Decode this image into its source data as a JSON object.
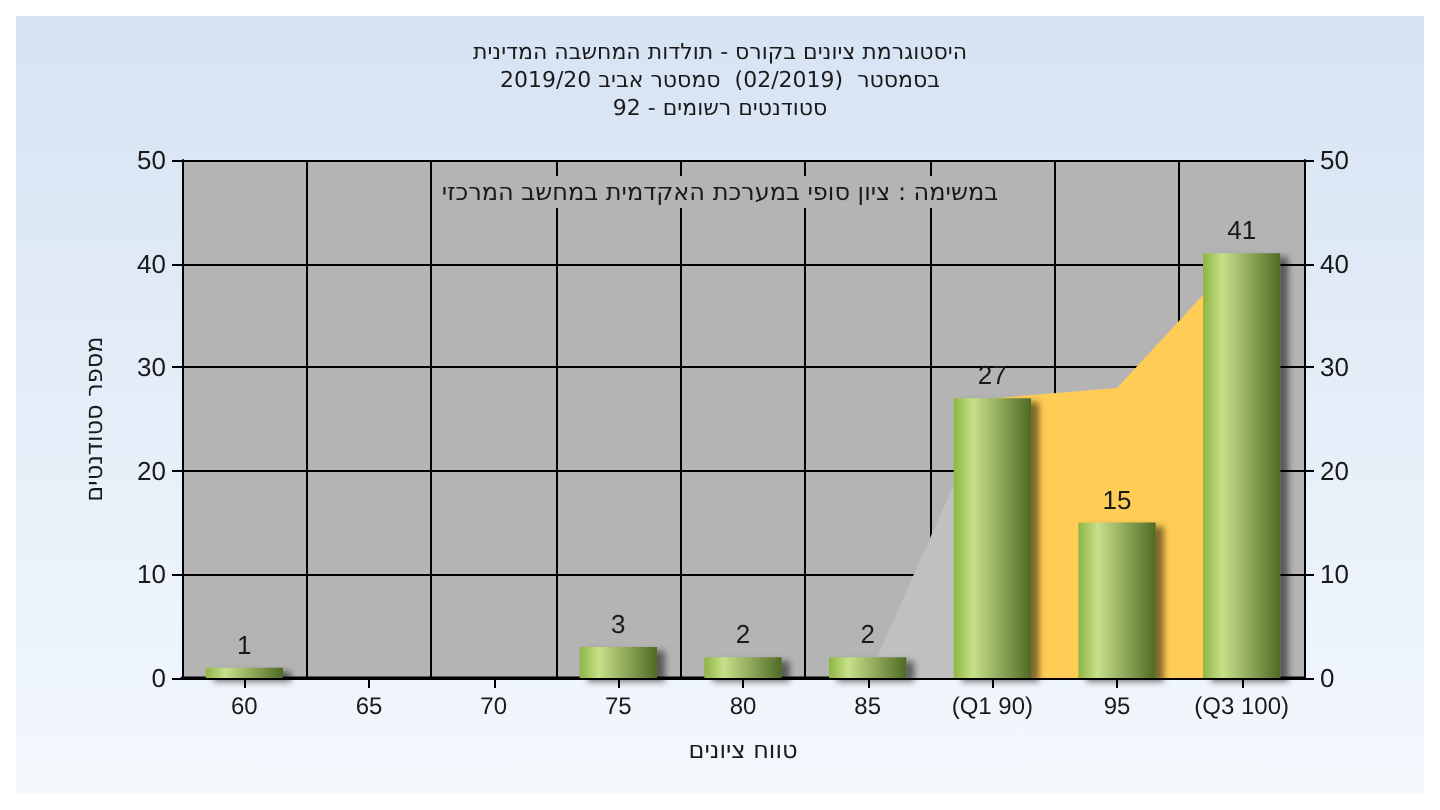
{
  "chart_data": {
    "type": "bar",
    "title": "היסטוגרמת ציונים בקורס - תולדות המחשבה המדינית\nבסמסטר  (02/2019)  סמסטר אביב 2019/20\nסטודנטים רשומים - 92",
    "xlabel": "טווח ציונים",
    "ylabel": "מספר סטודנטים",
    "annotations": [
      "במשימה : ציון סופי במערכת האקדמית במחשב המרכזי"
    ],
    "categories": [
      "60",
      "65",
      "70",
      "75",
      "80",
      "85",
      "(Q1 90)",
      "95",
      "(Q3 100)"
    ],
    "series": [
      {
        "type": "area",
        "color": "#c0c0c0",
        "values": [
          null,
          null,
          null,
          null,
          null,
          0,
          27,
          null,
          null
        ]
      },
      {
        "type": "area",
        "color": "#ffcc55",
        "values": [
          null,
          null,
          null,
          null,
          null,
          null,
          27,
          28,
          41
        ]
      },
      {
        "color": "#8db543",
        "values": [
          1,
          0,
          0,
          3,
          2,
          2,
          27,
          15,
          41
        ],
        "value_labels": [
          "1",
          null,
          null,
          "3",
          "2",
          "2",
          "27",
          "15",
          "41"
        ]
      }
    ],
    "ylim": [
      0,
      50
    ],
    "yticks": [
      0,
      10,
      20,
      30,
      40,
      50
    ],
    "y2lim": [
      0,
      50
    ],
    "y2ticks": [
      0,
      10,
      20,
      30,
      40,
      50
    ],
    "grid": true
  }
}
